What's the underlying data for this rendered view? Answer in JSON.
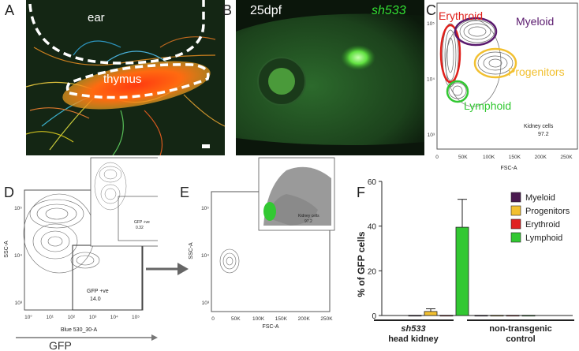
{
  "panels": {
    "a": {
      "letter": "A",
      "labels": {
        "ear": "ear",
        "thymus": "thymus"
      }
    },
    "b": {
      "letter": "B",
      "stage": "25dpf",
      "line": "sh533"
    },
    "c": {
      "letter": "C",
      "populations": {
        "erythroid": "Erythroid",
        "myeloid": "Myeloid",
        "progenitors": "Progenitors",
        "lymphoid": "Lymphoid"
      },
      "gate_name": "Kidney cells",
      "gate_value": "97.2",
      "xlabel": "FSC-A",
      "xticks": [
        "0",
        "50K",
        "100K",
        "150K",
        "200K",
        "250K"
      ],
      "yticks": [
        "10³",
        "10⁴",
        "10⁵"
      ],
      "colors": {
        "erythroid": "#e0201b",
        "myeloid": "#5a1a6e",
        "progenitors": "#f2c030",
        "lymphoid": "#32c832"
      }
    },
    "d": {
      "letter": "D",
      "ylabel": "SSC-A",
      "xlabel": "Blue 530_30-A",
      "gfp_label": "GFP",
      "gate_name": "GFP +ve",
      "gate_value": "14.0",
      "inset_gate_name": "GFP +ve",
      "inset_gate_value": "0.32",
      "xticks": [
        "10°",
        "10¹",
        "10²",
        "10³",
        "10⁴",
        "10⁵"
      ],
      "yticks": [
        "10³",
        "10⁴",
        "10⁵"
      ]
    },
    "e": {
      "letter": "E",
      "ylabel": "SSC-A",
      "xlabel": "FSC-A",
      "inset_gate_name": "Kidney cells",
      "inset_gate_value": "97.2",
      "xticks": [
        "0",
        "50K",
        "100K",
        "150K",
        "200K",
        "250K"
      ],
      "yticks": [
        "10³",
        "10⁴",
        "10⁵"
      ]
    },
    "f": {
      "letter": "F"
    }
  },
  "chart_data": {
    "type": "bar",
    "ylabel": "% of GFP cells",
    "ylim": [
      0,
      60
    ],
    "yticks": [
      0,
      20,
      40,
      60
    ],
    "groups": [
      {
        "label_line1": "sh533",
        "label_line2": "head kidney"
      },
      {
        "label_line1": "non-transgenic",
        "label_line2": "control"
      }
    ],
    "series": [
      {
        "name": "Myeloid",
        "color": "#4a1a50",
        "values": [
          0.1,
          0.1
        ],
        "errors": [
          0,
          0
        ]
      },
      {
        "name": "Progenitors",
        "color": "#f2c030",
        "values": [
          1.8,
          0.1
        ],
        "errors": [
          1.2,
          0
        ]
      },
      {
        "name": "Erythroid",
        "color": "#e02020",
        "values": [
          0.1,
          0.1
        ],
        "errors": [
          0,
          0
        ]
      },
      {
        "name": "Lymphoid",
        "color": "#32c832",
        "values": [
          39.5,
          0.1
        ],
        "errors": [
          12.5,
          0
        ]
      }
    ]
  }
}
